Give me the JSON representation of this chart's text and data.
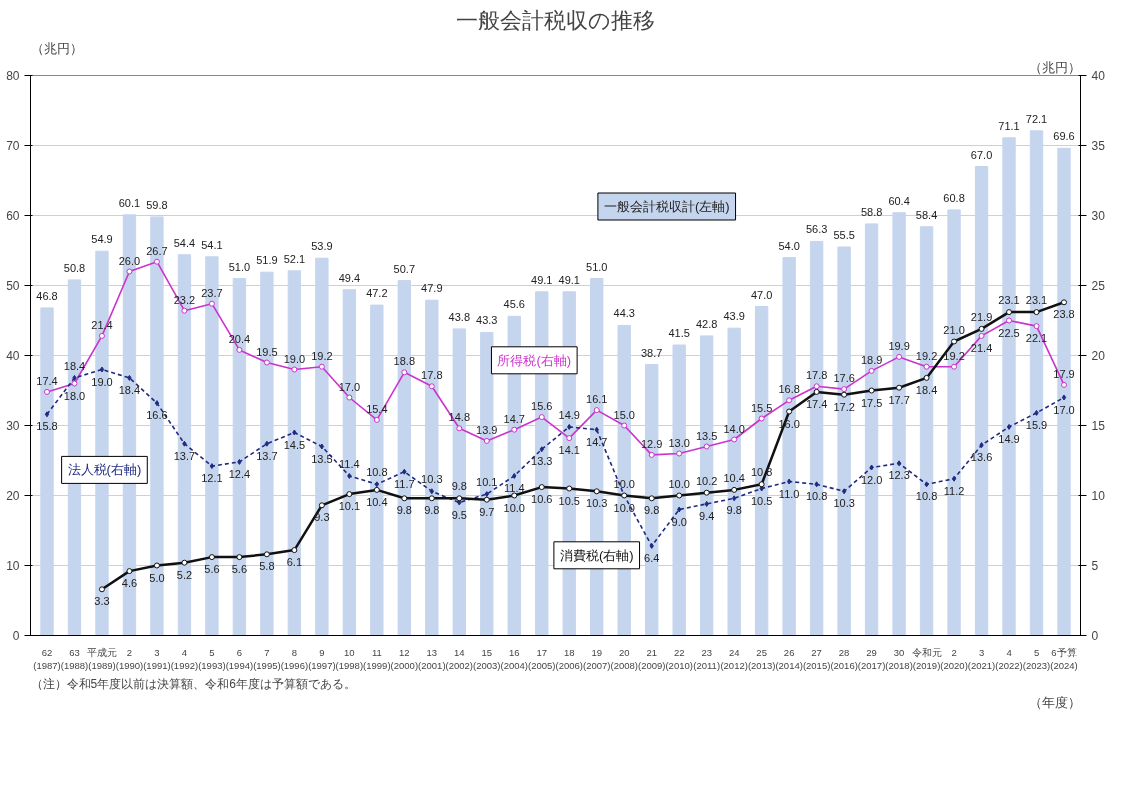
{
  "chart_data": {
    "type": "bar",
    "title": "一般会計税収の推移",
    "ylabel": "（兆円）",
    "y2label": "（兆円）",
    "xlabel": "（年度）",
    "annotations": [
      "（注）令和5年度以前は決算額、令和6年度は予算額である。"
    ],
    "categories": [
      "62\n(1987)",
      "63\n(1988)",
      "平成元\n(1989)",
      "2\n(1990)",
      "3\n(1991)",
      "4\n(1992)",
      "5\n(1993)",
      "6\n(1994)",
      "7\n(1995)",
      "8\n(1996)",
      "9\n(1997)",
      "10\n(1998)",
      "11\n(1999)",
      "12\n(2000)",
      "13\n(2001)",
      "14\n(2002)",
      "15\n(2003)",
      "16\n(2004)",
      "17\n(2005)",
      "18\n(2006)",
      "19\n(2007)",
      "20\n(2008)",
      "21\n(2009)",
      "22\n(2010)",
      "23\n(2011)",
      "24\n(2012)",
      "25\n(2013)",
      "26\n(2014)",
      "27\n(2015)",
      "28\n(2016)",
      "29\n(2017)",
      "30\n(2018)",
      "令和元\n(2019)",
      "2\n(2020)",
      "3\n(2021)",
      "4\n(2022)",
      "5\n(2023)",
      "6予算\n(2024)"
    ],
    "ylim": [
      0,
      80
    ],
    "yticks": [
      0,
      10,
      20,
      30,
      40,
      50,
      60,
      70,
      80
    ],
    "y2lim": [
      0,
      40
    ],
    "y2ticks": [
      0,
      5,
      10,
      15,
      20,
      25,
      30,
      35,
      40
    ],
    "grid": "y",
    "legend": false,
    "data_labels": true,
    "series": [
      {
        "name": "一般会計税収計(左軸)",
        "axis": "y",
        "color": "#c5d5ee",
        "values": [
          46.8,
          50.8,
          54.9,
          60.1,
          59.8,
          54.4,
          54.1,
          51.0,
          51.9,
          52.1,
          53.9,
          49.4,
          47.2,
          50.7,
          47.9,
          43.8,
          43.3,
          45.6,
          49.1,
          49.1,
          51.0,
          44.3,
          38.7,
          41.5,
          42.8,
          43.9,
          47.0,
          54.0,
          56.3,
          55.5,
          58.8,
          60.4,
          58.4,
          60.8,
          67.0,
          71.1,
          72.1,
          69.6
        ],
        "value_labels": [
          "46.8",
          "50.8",
          "54.9",
          "60.1",
          "59.8",
          "54.4",
          "54.1",
          "51.0",
          "51.9",
          "52.1",
          "53.9",
          "49.4",
          "47.2",
          "50.7",
          "47.9",
          "43.8",
          "43.3",
          "45.6",
          "49.1",
          "49.1",
          "51.0",
          "44.3",
          "38.7",
          "41.5",
          "42.8",
          "43.9",
          "47.0",
          "54.0",
          "56.3",
          "55.5",
          "58.8",
          "60.4",
          "58.4",
          "60.8",
          "67.0",
          "71.1",
          "72.1",
          "69.6"
        ]
      },
      {
        "name": "所得税(右軸)",
        "type": "line",
        "axis": "y2",
        "color": "#cc33cc",
        "line_style": "solid",
        "marker": "circle",
        "values": [
          17.4,
          18.0,
          21.4,
          26.0,
          26.7,
          23.2,
          23.7,
          20.4,
          19.5,
          19.0,
          19.2,
          17.0,
          15.4,
          18.8,
          17.8,
          14.8,
          13.9,
          14.7,
          15.6,
          14.1,
          16.1,
          15.0,
          12.9,
          13.0,
          13.5,
          14.0,
          15.5,
          16.8,
          17.8,
          17.6,
          18.9,
          19.9,
          19.2,
          19.2,
          21.4,
          22.5,
          22.1,
          17.9
        ],
        "value_labels": [
          "17.4",
          "18.0",
          "21.4",
          "26.0",
          "26.7",
          "23.2",
          "23.7",
          "20.4",
          "19.5",
          "19.0",
          "19.2",
          "17.0",
          "15.4",
          "18.8",
          "17.8",
          "14.8",
          "13.9",
          "14.7",
          "15.6",
          "14.1",
          "16.1",
          "15.0",
          "12.9",
          "13.0",
          "13.5",
          "14.0",
          "15.5",
          "16.8",
          "17.8",
          "17.6",
          "18.9",
          "19.9",
          "19.2",
          "19.2",
          "21.4",
          "22.5",
          "22.1",
          "17.9"
        ]
      },
      {
        "name": "法人税(右軸)",
        "type": "line",
        "axis": "y2",
        "color": "#1f2a80",
        "line_style": "dashed",
        "marker": "diamond",
        "values": [
          15.8,
          18.4,
          19.0,
          18.4,
          16.6,
          13.7,
          12.1,
          12.4,
          13.7,
          14.5,
          13.5,
          11.4,
          10.8,
          11.7,
          10.3,
          9.5,
          10.1,
          11.4,
          13.3,
          14.9,
          14.7,
          10.0,
          6.4,
          9.0,
          9.4,
          9.8,
          10.5,
          11.0,
          10.8,
          10.3,
          12.0,
          12.3,
          10.8,
          11.2,
          13.6,
          14.9,
          15.9,
          17.0
        ],
        "value_labels": [
          "15.8",
          "18.4",
          "19.0",
          "18.4",
          "16.6",
          "13.7",
          "12.1",
          "12.4",
          "13.7",
          "14.5",
          "13.5",
          "11.4",
          "10.8",
          "11.7",
          "10.3",
          "9.5",
          "10.1",
          "11.4",
          "13.3",
          "14.9",
          "14.7",
          "10.0",
          "6.4",
          "9.0",
          "9.4",
          "9.8",
          "10.5",
          "11.0",
          "10.8",
          "10.3",
          "12.0",
          "12.3",
          "10.8",
          "11.2",
          "13.6",
          "14.9",
          "15.9",
          "17.0"
        ]
      },
      {
        "name": "消費税(右軸)",
        "type": "line",
        "axis": "y2",
        "color": "#111111",
        "line_style": "solid",
        "marker": "circle",
        "values": [
          null,
          null,
          3.3,
          4.6,
          5.0,
          5.2,
          5.6,
          5.6,
          5.8,
          6.1,
          9.3,
          10.1,
          10.4,
          9.8,
          9.8,
          9.8,
          9.7,
          10.0,
          10.6,
          10.5,
          10.3,
          10.0,
          9.8,
          10.0,
          10.2,
          10.4,
          10.8,
          16.0,
          17.4,
          17.2,
          17.5,
          17.7,
          18.4,
          21.0,
          21.9,
          23.1,
          23.1,
          23.8
        ],
        "value_labels": [
          null,
          null,
          "3.3",
          "4.6",
          "5.0",
          "5.2",
          "5.6",
          "5.6",
          "5.8",
          "6.1",
          "9.3",
          "10.1",
          "10.4",
          "9.8",
          "9.8",
          "9.8",
          "9.7",
          "10.0",
          "10.6",
          "10.5",
          "10.3",
          "10.0",
          "9.8",
          "10.0",
          "10.2",
          "10.4",
          "10.8",
          "16.0",
          "17.4",
          "17.2",
          "17.5",
          "17.7",
          "18.4",
          "21.0",
          "21.9",
          "23.1",
          "23.1",
          "23.8"
        ]
      }
    ]
  }
}
